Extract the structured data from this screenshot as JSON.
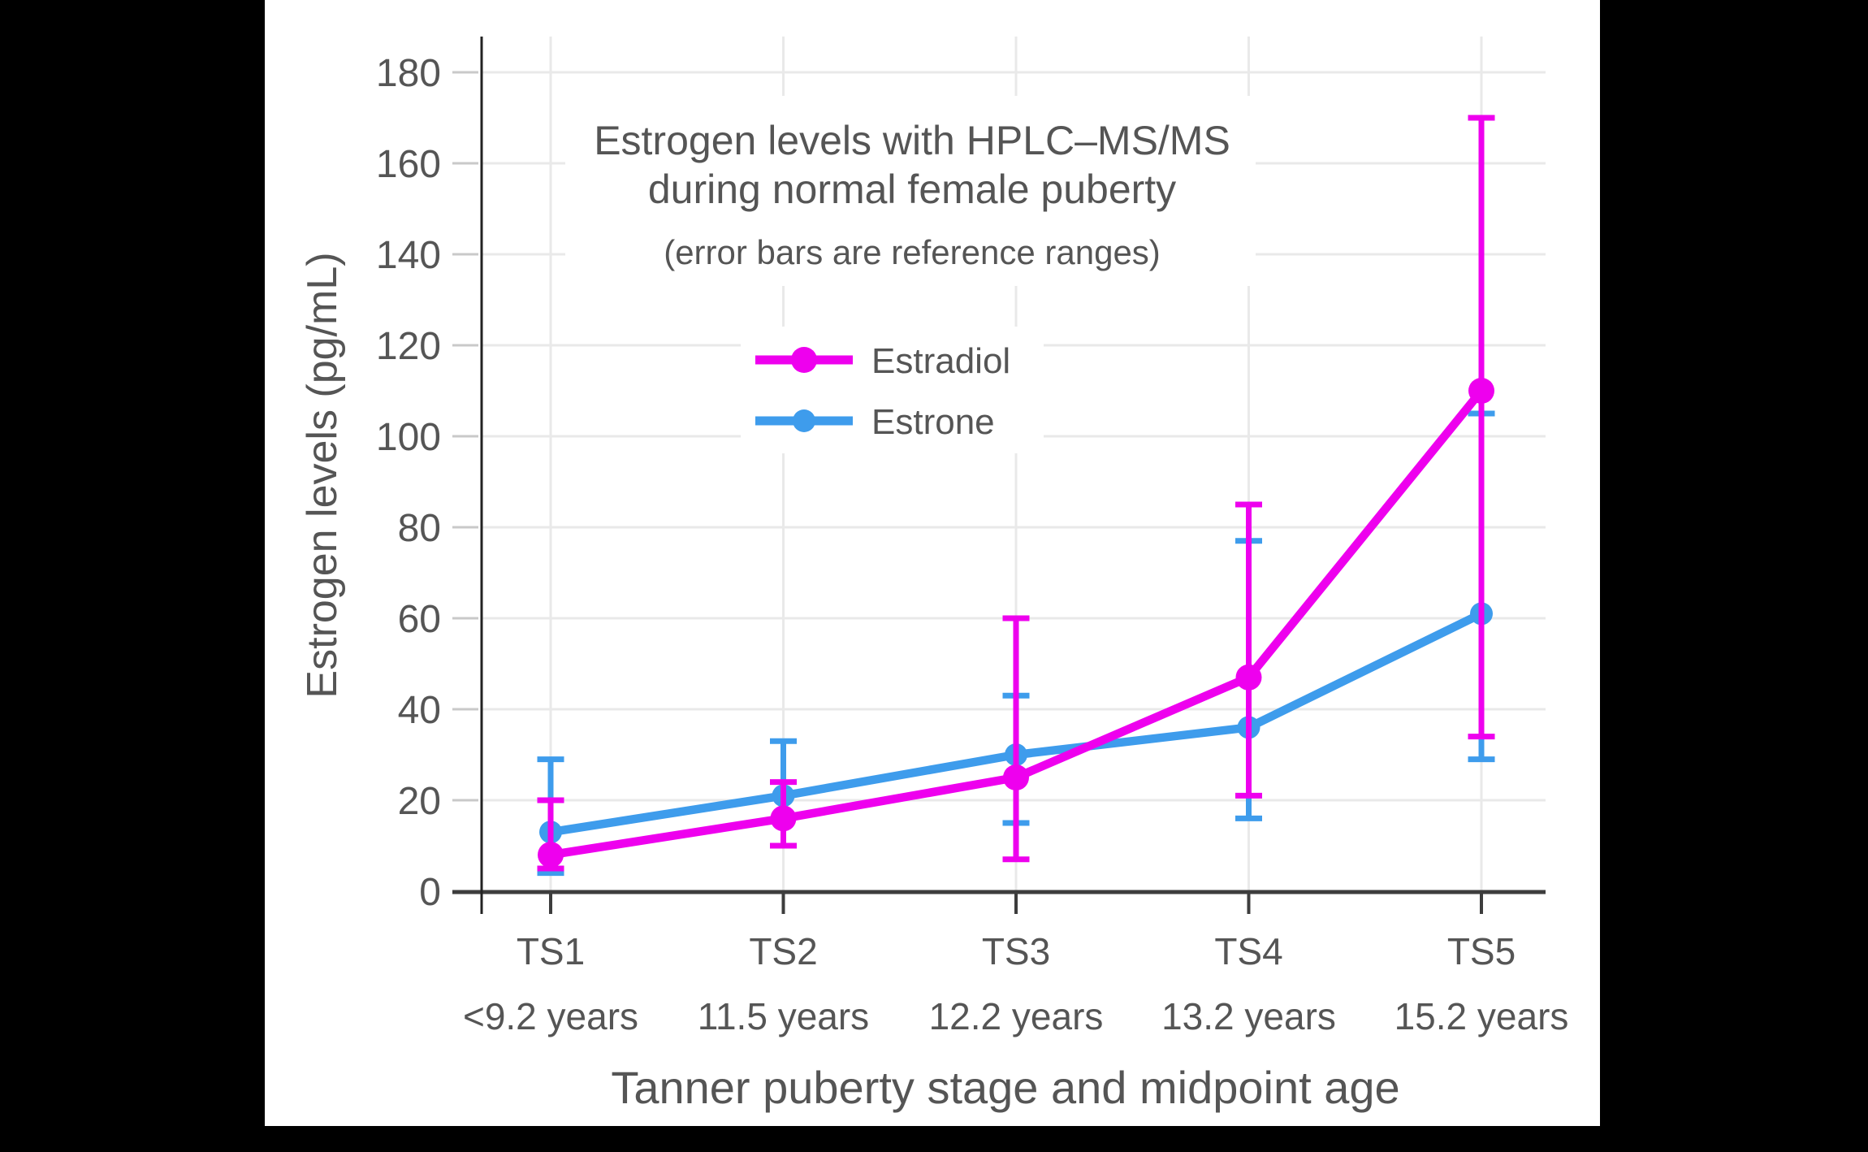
{
  "chart_data": {
    "type": "line",
    "title_lines": [
      "Estrogen levels with HPLC–MS/MS",
      "during normal female puberty"
    ],
    "subtitle": "(error bars are reference ranges)",
    "xlabel": "Tanner puberty stage and midpoint age",
    "ylabel": "Estrogen levels (pg/mL)",
    "categories": [
      "TS1",
      "TS2",
      "TS3",
      "TS4",
      "TS5"
    ],
    "category_ages": [
      "<9.2 years",
      "11.5 years",
      "12.2 years",
      "13.2 years",
      "15.2 years"
    ],
    "y_ticks": [
      0,
      20,
      40,
      60,
      80,
      100,
      120,
      140,
      160,
      180
    ],
    "ylim": [
      0,
      188
    ],
    "grid": true,
    "legend": {
      "position": "upper-center",
      "items": [
        "Estradiol",
        "Estrone"
      ]
    },
    "series": [
      {
        "name": "Estrone",
        "color": "#3E9CEC",
        "values": [
          13,
          21,
          30,
          36,
          61
        ],
        "error_low": [
          4,
          10,
          15,
          16,
          29
        ],
        "error_high": [
          29,
          33,
          43,
          77,
          105
        ]
      },
      {
        "name": "Estradiol",
        "color": "#EE00EE",
        "values": [
          8,
          16,
          25,
          47,
          110
        ],
        "error_low": [
          5,
          10,
          7,
          21,
          34
        ],
        "error_high": [
          20,
          24,
          60,
          85,
          170
        ]
      }
    ],
    "colors": {
      "grid": "#e9e9e9",
      "y_axis_line": "#222222",
      "x_axis_line": "#3d3d3d",
      "text": "#555555"
    }
  }
}
